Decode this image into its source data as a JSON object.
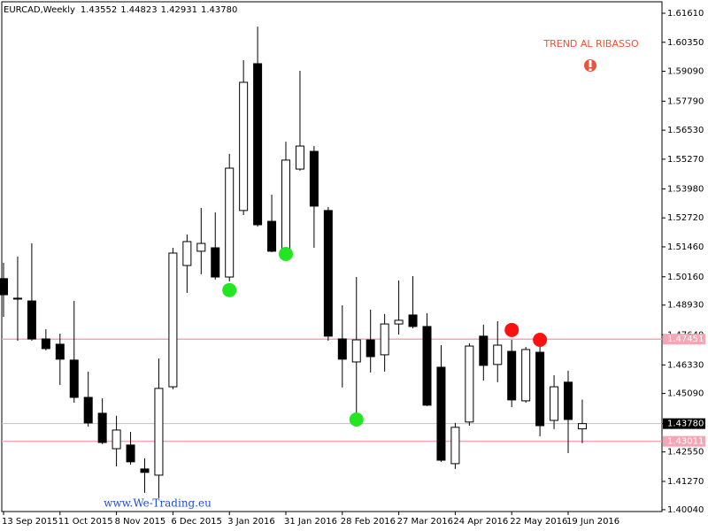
{
  "chart_data": {
    "type": "candlestick",
    "symbol": "EURCAD,Weekly",
    "ohlc_labels": [
      "1.43552",
      "1.44823",
      "1.42931",
      "1.43780"
    ],
    "annotation": "TREND AL RIBASSO",
    "watermark": "www.We-Trading.eu",
    "categories": [
      "13 Sep 2015",
      null,
      null,
      null,
      "11 Oct 2015",
      null,
      null,
      null,
      "8 Nov 2015",
      null,
      null,
      null,
      "6 Dec 2015",
      null,
      null,
      null,
      "3 Jan 2016",
      null,
      null,
      null,
      "31 Jan 2016",
      null,
      null,
      null,
      "28 Feb 2016",
      null,
      null,
      null,
      "27 Mar 2016",
      null,
      null,
      null,
      "24 Apr 2016",
      null,
      null,
      null,
      "22 May 2016",
      null,
      null,
      null,
      "19 Jun 2016",
      null
    ],
    "open": [
      1.5008,
      1.4923,
      1.4911,
      1.4746,
      1.4723,
      1.4654,
      1.4492,
      1.4423,
      1.4269,
      1.4285,
      1.4181,
      1.4154,
      1.4538,
      1.5065,
      1.5127,
      1.5142,
      1.5015,
      1.5304,
      1.5942,
      1.5257,
      1.5127,
      1.5484,
      1.5561,
      1.5304,
      1.4746,
      1.4646,
      1.4742,
      1.4677,
      1.4811,
      1.485,
      1.48,
      1.4623,
      1.4204,
      1.4385,
      1.4758,
      1.4635,
      1.4692,
      1.4477,
      1.4688,
      1.4392,
      1.4558,
      1.43552
    ],
    "high": [
      1.5077,
      1.5104,
      1.5161,
      1.4788,
      1.4769,
      1.4911,
      1.4604,
      1.4488,
      1.4412,
      1.4342,
      1.4227,
      1.4661,
      1.5142,
      1.52,
      1.5315,
      1.5296,
      1.555,
      1.5957,
      1.6103,
      1.5373,
      1.5603,
      1.5911,
      1.5584,
      1.5319,
      1.4892,
      1.5015,
      1.4873,
      1.4854,
      1.5,
      1.5019,
      1.4858,
      1.4719,
      1.4381,
      1.4727,
      1.4808,
      1.4823,
      1.4742,
      1.4711,
      1.4731,
      1.4588,
      1.4608,
      1.44823
    ],
    "low": [
      1.4842,
      1.4738,
      1.4738,
      1.4696,
      1.4546,
      1.4469,
      1.4365,
      1.4289,
      1.4192,
      1.42,
      1.4077,
      1.4054,
      1.4527,
      1.4946,
      1.5027,
      1.5004,
      1.4996,
      1.5284,
      1.5234,
      1.5123,
      1.5119,
      1.5477,
      1.5142,
      1.4738,
      1.4535,
      1.4392,
      1.46,
      1.4604,
      1.4765,
      1.4792,
      1.4454,
      1.4212,
      1.4181,
      1.4369,
      1.4565,
      1.4558,
      1.445,
      1.4469,
      1.4323,
      1.4354,
      1.425,
      1.42931
    ],
    "close": [
      1.4938,
      1.4919,
      1.4746,
      1.4704,
      1.4658,
      1.4492,
      1.4381,
      1.4296,
      1.435,
      1.4212,
      1.4166,
      1.4531,
      1.5119,
      1.5169,
      1.5161,
      1.5015,
      1.5488,
      1.5861,
      1.5242,
      1.5127,
      1.5523,
      1.5584,
      1.5323,
      1.4758,
      1.4658,
      1.4742,
      1.4669,
      1.4811,
      1.4827,
      1.48,
      1.4458,
      1.4219,
      1.4362,
      1.4715,
      1.4631,
      1.4719,
      1.4481,
      1.47,
      1.4369,
      1.4538,
      1.4396,
      1.4378
    ],
    "signals": [
      {
        "color": "#22e622",
        "values": [
          null,
          null,
          null,
          null,
          null,
          null,
          null,
          null,
          null,
          null,
          null,
          null,
          null,
          null,
          null,
          null,
          1.4958,
          null,
          null,
          null,
          1.5115,
          null,
          null,
          null,
          null,
          1.4396,
          null,
          null,
          null,
          null,
          null,
          null,
          null,
          null,
          null,
          null,
          null,
          null,
          null,
          null,
          null,
          null
        ]
      },
      {
        "color": "#ff1010",
        "values": [
          null,
          null,
          null,
          null,
          null,
          null,
          null,
          null,
          null,
          null,
          null,
          null,
          null,
          null,
          null,
          null,
          null,
          null,
          null,
          null,
          null,
          null,
          null,
          null,
          null,
          null,
          null,
          null,
          null,
          null,
          null,
          null,
          null,
          null,
          null,
          null,
          1.4785,
          null,
          1.4742,
          null,
          null,
          null
        ]
      }
    ],
    "levels": [
      {
        "value": 1.47451,
        "label": "1.47451",
        "color": "#f4a6b4"
      },
      {
        "value": 1.43011,
        "label": "1.43011",
        "color": "#f4a6b4"
      }
    ],
    "current_price": {
      "value": 1.4378,
      "label": "1.43780",
      "color": "#c0c0c0"
    },
    "ylim": [
      1.3996,
      1.6211
    ],
    "yticks": [
      {
        "value": 1.4004,
        "label": "1.40040"
      },
      {
        "value": 1.4127,
        "label": "1.41270"
      },
      {
        "value": 1.4255,
        "label": "1.42550"
      },
      {
        "value": 1.4378,
        "label": "1.43780"
      },
      {
        "value": 1.4509,
        "label": "1.45090"
      },
      {
        "value": 1.4633,
        "label": "1.46330"
      },
      {
        "value": 1.4764,
        "label": "1.47640"
      },
      {
        "value": 1.4893,
        "label": "1.48930"
      },
      {
        "value": 1.5016,
        "label": "1.50160"
      },
      {
        "value": 1.5146,
        "label": "1.51460"
      },
      {
        "value": 1.5272,
        "label": "1.52720"
      },
      {
        "value": 1.5398,
        "label": "1.53980"
      },
      {
        "value": 1.5527,
        "label": "1.55270"
      },
      {
        "value": 1.5653,
        "label": "1.56530"
      },
      {
        "value": 1.5779,
        "label": "1.57790"
      },
      {
        "value": 1.5909,
        "label": "1.59090"
      },
      {
        "value": 1.6035,
        "label": "1.60350"
      },
      {
        "value": 1.6161,
        "label": "1.61610"
      }
    ],
    "bull_color": "#ffffff",
    "bear_color": "#000000"
  }
}
